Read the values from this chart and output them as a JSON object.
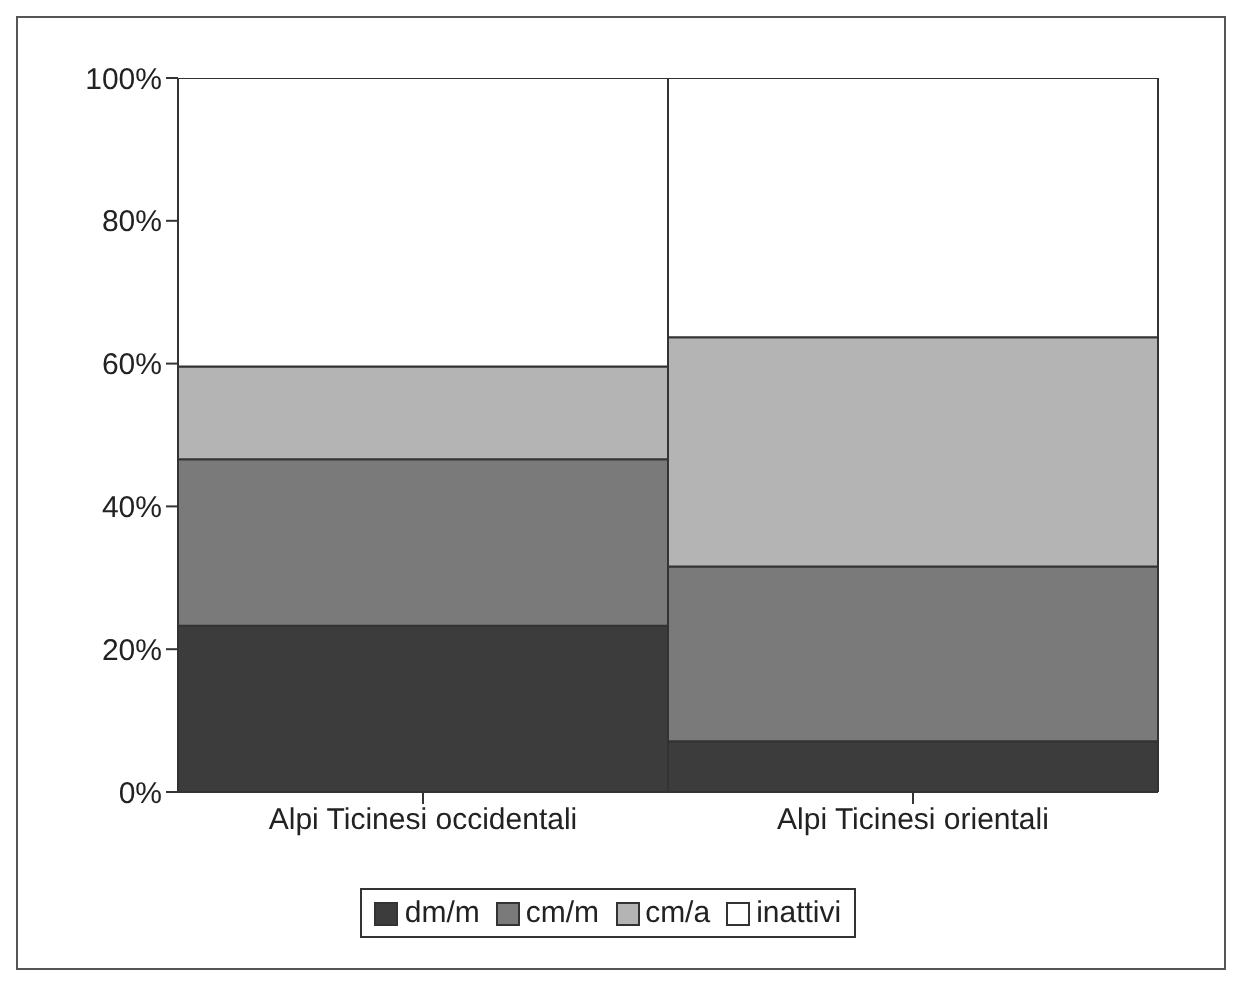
{
  "chart_data": {
    "type": "bar",
    "stacked": true,
    "categories": [
      "Alpi Ticinesi occidentali",
      "Alpi Ticinesi orientali"
    ],
    "series": [
      {
        "name": "dm/m",
        "color": "#3c3c3c",
        "values": [
          23.3,
          7.1
        ]
      },
      {
        "name": "cm/m",
        "color": "#7a7a7a",
        "values": [
          23.3,
          24.5
        ]
      },
      {
        "name": "cm/a",
        "color": "#b4b4b4",
        "values": [
          13.0,
          32.1
        ]
      },
      {
        "name": "inattivi",
        "color": "#ffffff",
        "values": [
          40.4,
          36.3
        ]
      }
    ],
    "ylim": [
      0,
      100
    ],
    "yticks": [
      {
        "value": 0,
        "label": "0%"
      },
      {
        "value": 20,
        "label": "20%"
      },
      {
        "value": 40,
        "label": "40%"
      },
      {
        "value": 60,
        "label": "60%"
      },
      {
        "value": 80,
        "label": "80%"
      },
      {
        "value": 100,
        "label": "100%"
      }
    ],
    "grid": false,
    "legend": "bottom"
  }
}
